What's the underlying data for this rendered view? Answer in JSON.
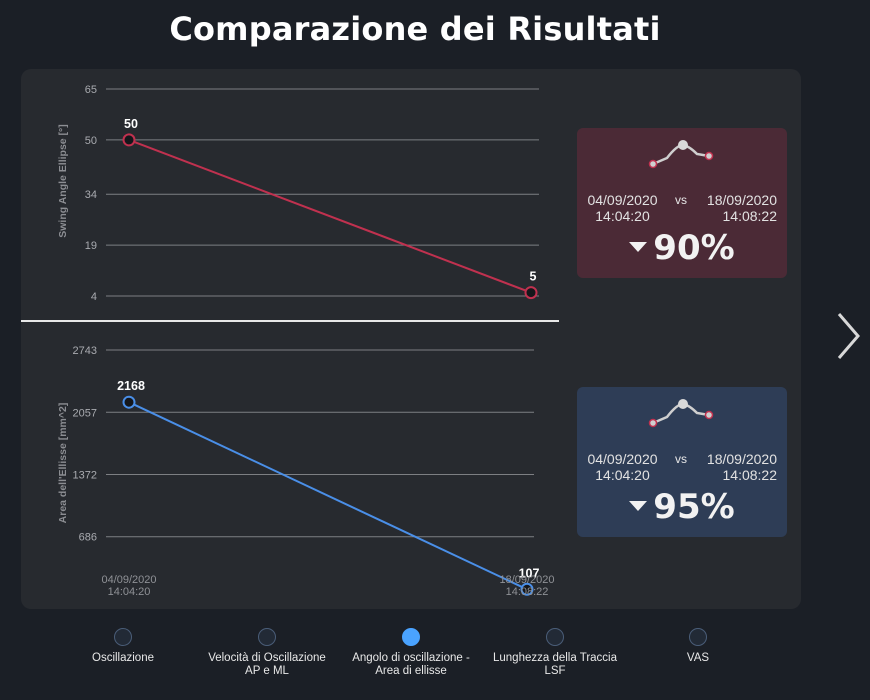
{
  "title": "Comparazione dei Risultati",
  "chart_data": [
    {
      "type": "line",
      "ylabel": "Swing Angle Ellipse [°]",
      "yticks": [
        65,
        50,
        34,
        19,
        4
      ],
      "ylim": [
        4,
        65
      ],
      "x": [
        "04/09/2020 14:04:20",
        "18/09/2020 14:08:22"
      ],
      "values": [
        50,
        5
      ],
      "data_labels": [
        "50",
        "5"
      ],
      "color": "#c0314f"
    },
    {
      "type": "line",
      "ylabel": "Area dell'Ellisse [mm^2]",
      "yticks": [
        2743,
        2057,
        1372,
        686
      ],
      "ylim": [
        0,
        2743
      ],
      "x": [
        "04/09/2020 14:04:20",
        "18/09/2020 14:08:22"
      ],
      "xtick_labels": [
        [
          "04/09/2020",
          "14:04:20"
        ],
        [
          "18/09/2020",
          "14:08:22"
        ]
      ],
      "values": [
        2168,
        107
      ],
      "data_labels": [
        "2168",
        "107"
      ],
      "color": "#4a8fe8"
    }
  ],
  "cards": [
    {
      "date1": "04/09/2020",
      "time1": "14:04:20",
      "vs": "vs",
      "date2": "18/09/2020",
      "time2": "14:08:22",
      "percent": "90%",
      "accent": "#c0314f"
    },
    {
      "date1": "04/09/2020",
      "time1": "14:04:20",
      "vs": "vs",
      "date2": "18/09/2020",
      "time2": "14:08:22",
      "percent": "95%",
      "accent": "#c0314f"
    }
  ],
  "nav": [
    {
      "label1": "Oscillazione",
      "label2": "",
      "active": false
    },
    {
      "label1": "Velocità di Oscillazione",
      "label2": "AP e ML",
      "active": false
    },
    {
      "label1": "Angolo di oscillazione -",
      "label2": "Area di ellisse",
      "active": true
    },
    {
      "label1": "Lunghezza della Traccia",
      "label2": "LSF",
      "active": false
    },
    {
      "label1": "VAS",
      "label2": "",
      "active": false
    }
  ],
  "icons": {
    "next": "chevron-right-icon",
    "trend": "trend-line-icon",
    "down": "caret-down-icon"
  }
}
